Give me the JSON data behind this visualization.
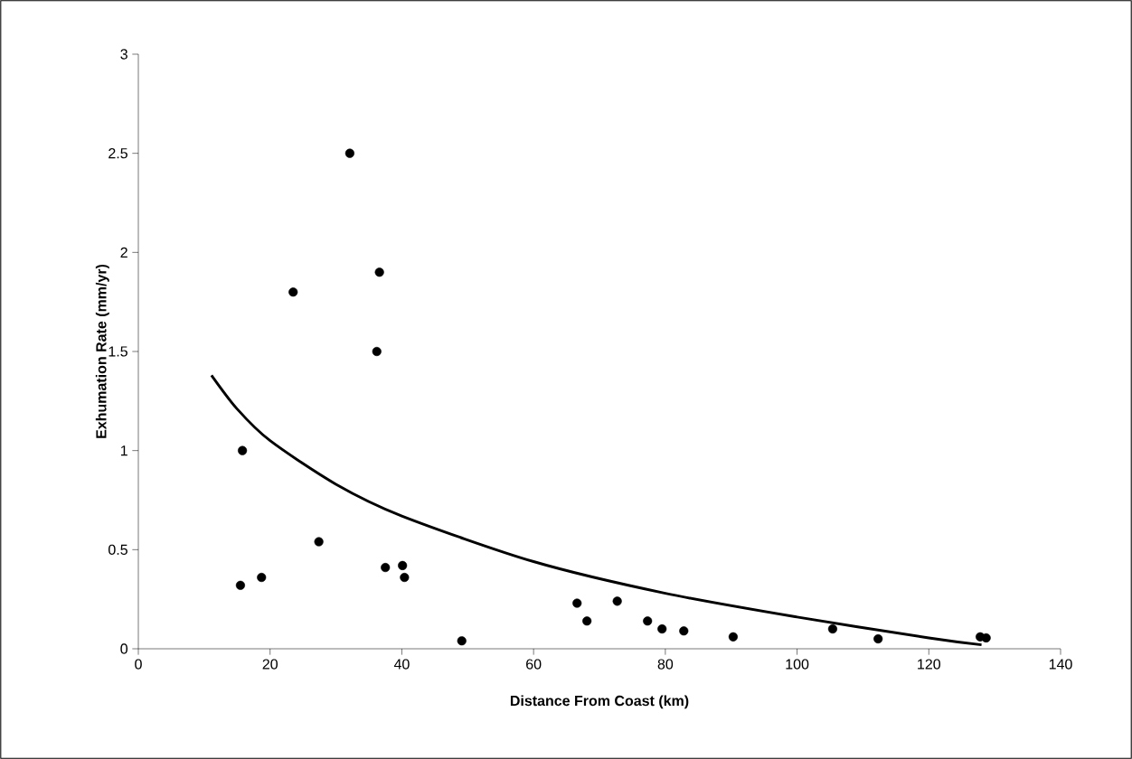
{
  "chart_data": {
    "type": "scatter",
    "xlabel": "Distance From Coast (km)",
    "ylabel": "Exhumation Rate (mm/yr)",
    "xlim": [
      0,
      140
    ],
    "ylim": [
      0,
      3
    ],
    "xticks": [
      0,
      20,
      40,
      60,
      80,
      100,
      120,
      140
    ],
    "yticks": [
      0,
      0.5,
      1,
      1.5,
      2,
      2.5,
      3
    ],
    "grid": false,
    "series": [
      {
        "color": "#000000",
        "marker": "circle",
        "x": [
          15.5,
          15.8,
          18.7,
          23.5,
          27.4,
          32.1,
          36.6,
          36.2,
          37.5,
          40.1,
          40.4,
          49.1,
          66.6,
          68.1,
          72.7,
          77.3,
          79.5,
          82.8,
          90.3,
          105.4,
          112.3,
          127.8,
          128.7
        ],
        "values": [
          0.32,
          1.0,
          0.36,
          1.8,
          0.54,
          2.5,
          1.9,
          1.5,
          0.41,
          0.42,
          0.36,
          0.04,
          0.23,
          0.14,
          0.24,
          0.14,
          0.1,
          0.09,
          0.06,
          0.1,
          0.05,
          0.06,
          0.055
        ]
      },
      {
        "type": "line",
        "color": "#000000",
        "marker": "none",
        "line_style": "solid",
        "x": [
          11.1,
          15,
          20,
          30,
          40,
          60,
          80,
          100,
          120,
          128
        ],
        "values": [
          1.38,
          1.21,
          1.05,
          0.83,
          0.67,
          0.44,
          0.28,
          0.16,
          0.055,
          0.02
        ]
      }
    ]
  }
}
